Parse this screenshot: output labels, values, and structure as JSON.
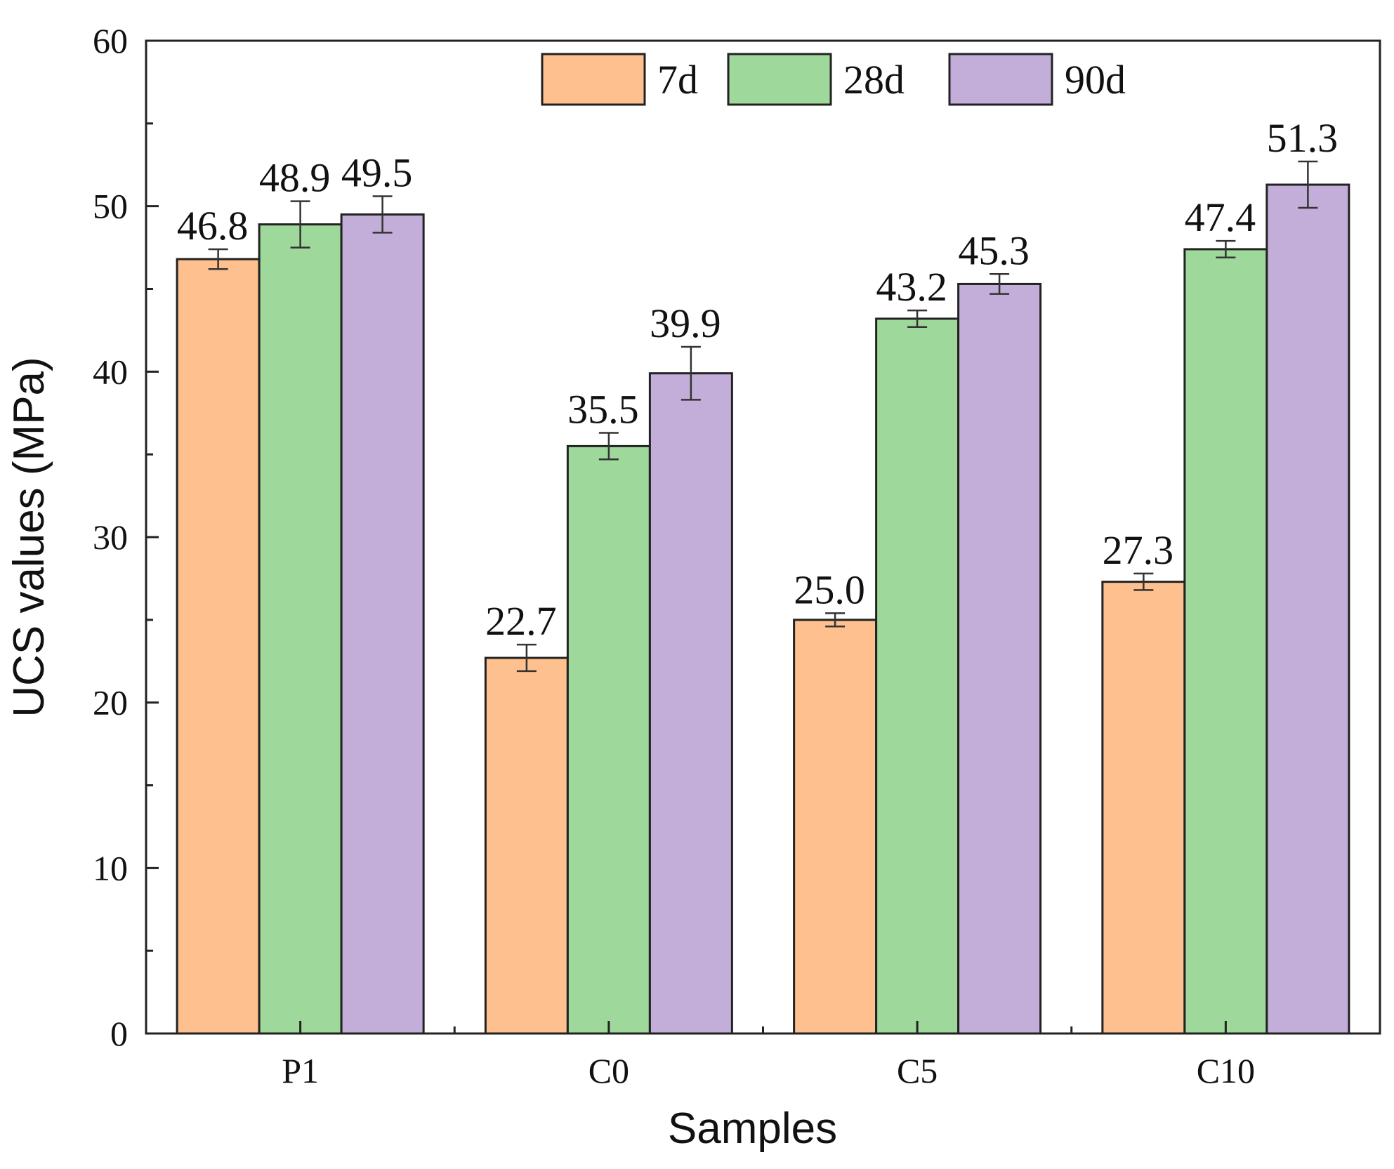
{
  "chart_data": {
    "type": "bar",
    "title": "",
    "xlabel": "Samples",
    "ylabel": "UCS values (MPa)",
    "ylim": [
      0,
      60
    ],
    "yticks": [
      0,
      10,
      20,
      30,
      40,
      50,
      60
    ],
    "categories": [
      "P1",
      "C0",
      "C5",
      "C10"
    ],
    "series": [
      {
        "name": "7d",
        "color": "#FDC08E",
        "values": [
          46.8,
          22.7,
          25.0,
          27.3
        ],
        "errors": [
          0.6,
          0.8,
          0.4,
          0.5
        ],
        "labels": [
          "46.8",
          "22.7",
          "25.0",
          "27.3"
        ]
      },
      {
        "name": "28d",
        "color": "#9ED89A",
        "values": [
          48.9,
          35.5,
          43.2,
          47.4
        ],
        "errors": [
          1.4,
          0.8,
          0.5,
          0.5
        ],
        "labels": [
          "48.9",
          "35.5",
          "43.2",
          "47.4"
        ]
      },
      {
        "name": "90d",
        "color": "#C2AED8",
        "values": [
          49.5,
          39.9,
          45.3,
          51.3
        ],
        "errors": [
          1.1,
          1.6,
          0.6,
          1.4
        ],
        "labels": [
          "49.5",
          "39.9",
          "45.3",
          "51.3"
        ]
      }
    ],
    "legend_position": "top-center",
    "grid": false
  }
}
